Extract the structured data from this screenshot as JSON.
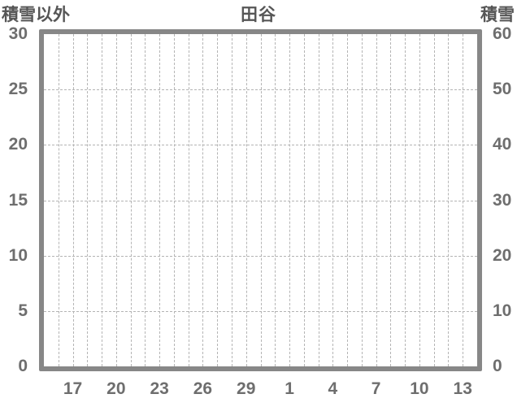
{
  "chart_data": {
    "type": "line",
    "title": "田谷",
    "left_axis": {
      "label": "積雪以外",
      "ticks": [
        30,
        25,
        20,
        15,
        10,
        5,
        0
      ],
      "range": [
        0,
        30
      ]
    },
    "right_axis": {
      "label": "積雪",
      "ticks": [
        60,
        50,
        40,
        30,
        20,
        10,
        0
      ],
      "range": [
        0,
        60
      ]
    },
    "x_axis": {
      "tick_labels": [
        "17",
        "20",
        "23",
        "26",
        "29",
        "1",
        "4",
        "7",
        "10",
        "13"
      ],
      "daily_gridlines": 29,
      "divisions": 30,
      "first_label_division_index": 2,
      "label_division_step": 3
    },
    "series": [],
    "grid": {
      "vertical_dashed": true,
      "horizontal_dashed": true
    },
    "colors": {
      "border": "#878787",
      "gridline": "#b4b4b4",
      "tick_text": "#6e6e6e",
      "title_text": "#565656",
      "background": "#ffffff"
    },
    "layout": {
      "plot_left": 48,
      "plot_top": 36,
      "plot_inner_width": 533,
      "plot_inner_height": 409,
      "border_width": 6
    }
  }
}
